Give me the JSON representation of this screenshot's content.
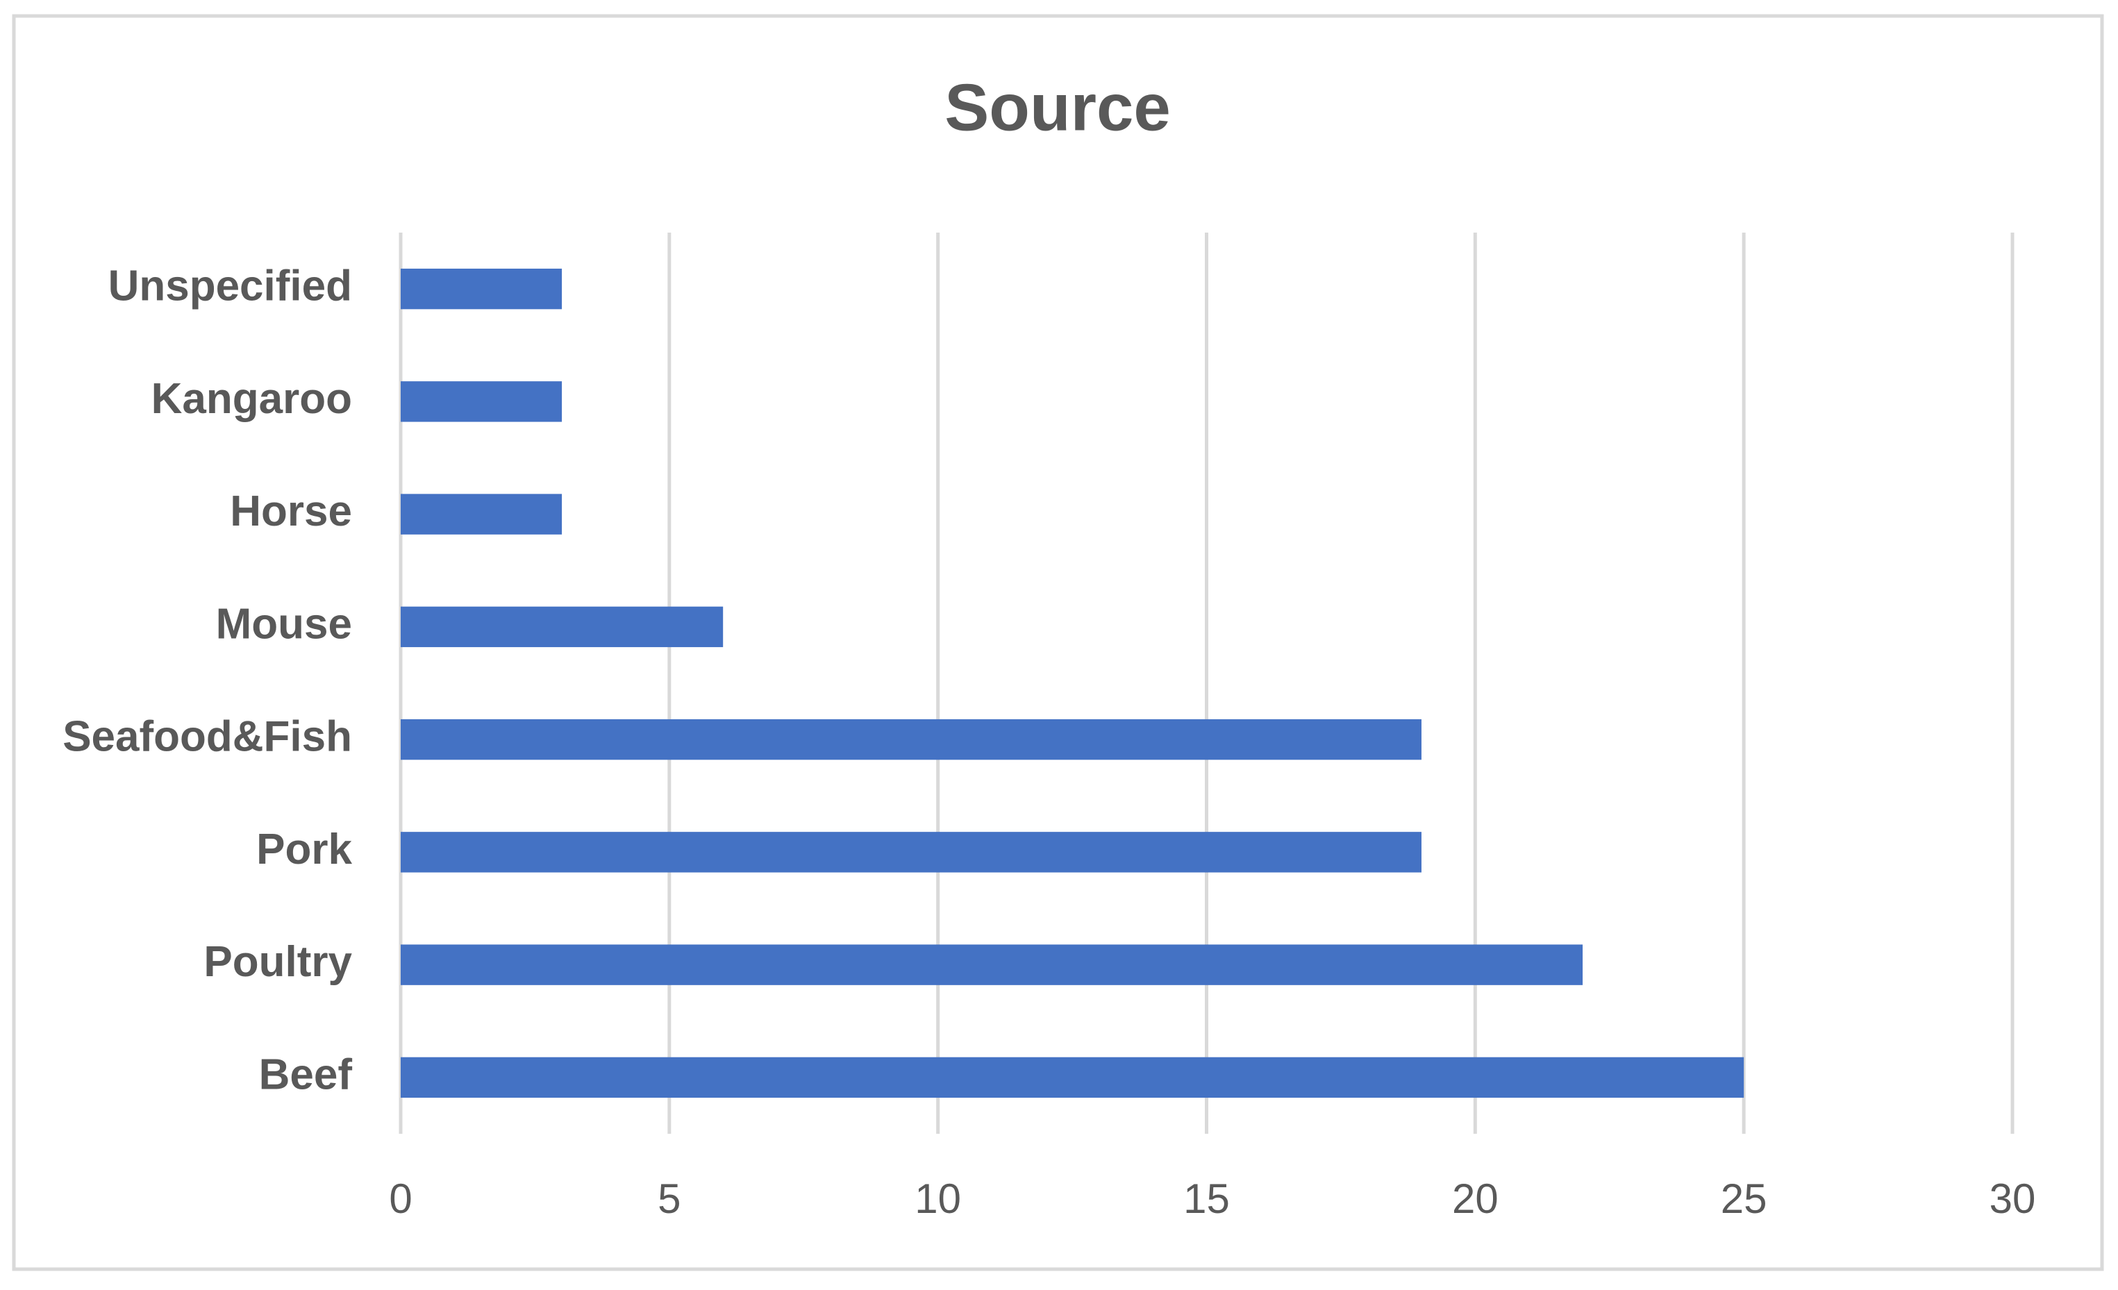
{
  "chart_data": {
    "type": "bar",
    "orientation": "horizontal",
    "title": "Source",
    "categories": [
      "Beef",
      "Poultry",
      "Pork",
      "Seafood&Fish",
      "Mouse",
      "Horse",
      "Kangaroo",
      "Unspecified"
    ],
    "values": [
      25,
      22,
      19,
      19,
      6,
      3,
      3,
      3
    ],
    "color": "#4472c4",
    "xlim": [
      0,
      30
    ],
    "xticks": [
      0,
      5,
      10,
      15,
      20,
      25,
      30
    ],
    "grid": true
  }
}
